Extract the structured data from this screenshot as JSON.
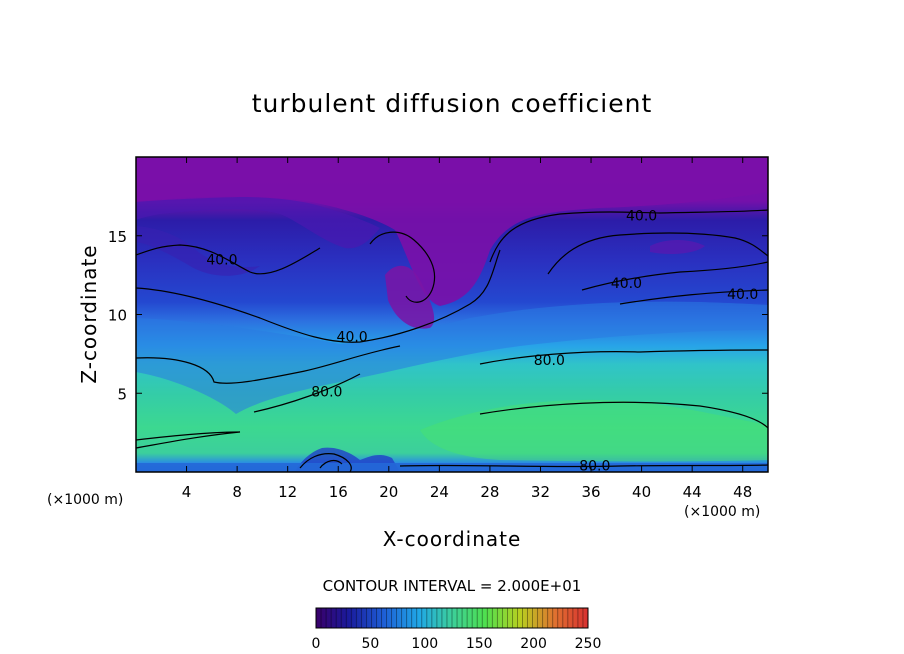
{
  "chart_data": {
    "type": "heatmap",
    "title": "turbulent diffusion coefficient",
    "xlabel": "X-coordinate",
    "ylabel": "Z-coordinate",
    "x_unit": "(×1000 m)",
    "y_unit": "(×1000 m)",
    "xlim": [
      0,
      50
    ],
    "ylim": [
      0,
      20
    ],
    "x_ticks": [
      4,
      8,
      12,
      16,
      20,
      24,
      28,
      32,
      36,
      40,
      44,
      48
    ],
    "y_ticks": [
      5,
      10,
      15
    ],
    "contour_interval_label": "CONTOUR INTERVAL = 2.000E+01",
    "contour_labels": [
      {
        "text": "40.0",
        "x": 40.0,
        "z": 16.3
      },
      {
        "text": "40.0",
        "x": 6.8,
        "z": 13.5
      },
      {
        "text": "40.0",
        "x": 38.8,
        "z": 12.0
      },
      {
        "text": "40.0",
        "x": 48.0,
        "z": 11.3
      },
      {
        "text": "40.0",
        "x": 17.1,
        "z": 8.6
      },
      {
        "text": "80.0",
        "x": 32.7,
        "z": 7.1
      },
      {
        "text": "80.0",
        "x": 15.1,
        "z": 5.1
      },
      {
        "text": "80.0",
        "x": 36.3,
        "z": 0.4
      }
    ],
    "colorbar": {
      "range": [
        0,
        250
      ],
      "ticks": [
        0,
        50,
        100,
        150,
        200,
        250
      ],
      "colors": [
        "#3a006a",
        "#1a1a9c",
        "#1e5fd6",
        "#20a8e6",
        "#3ccf9a",
        "#4ee050",
        "#b8d020",
        "#e07030",
        "#d83030"
      ]
    },
    "field_colors": {
      "upper_layer": "#7a10a8",
      "middle_layer": "#2040d0",
      "lower_layer": "#30c0a8",
      "surface": "#2080e0"
    }
  }
}
